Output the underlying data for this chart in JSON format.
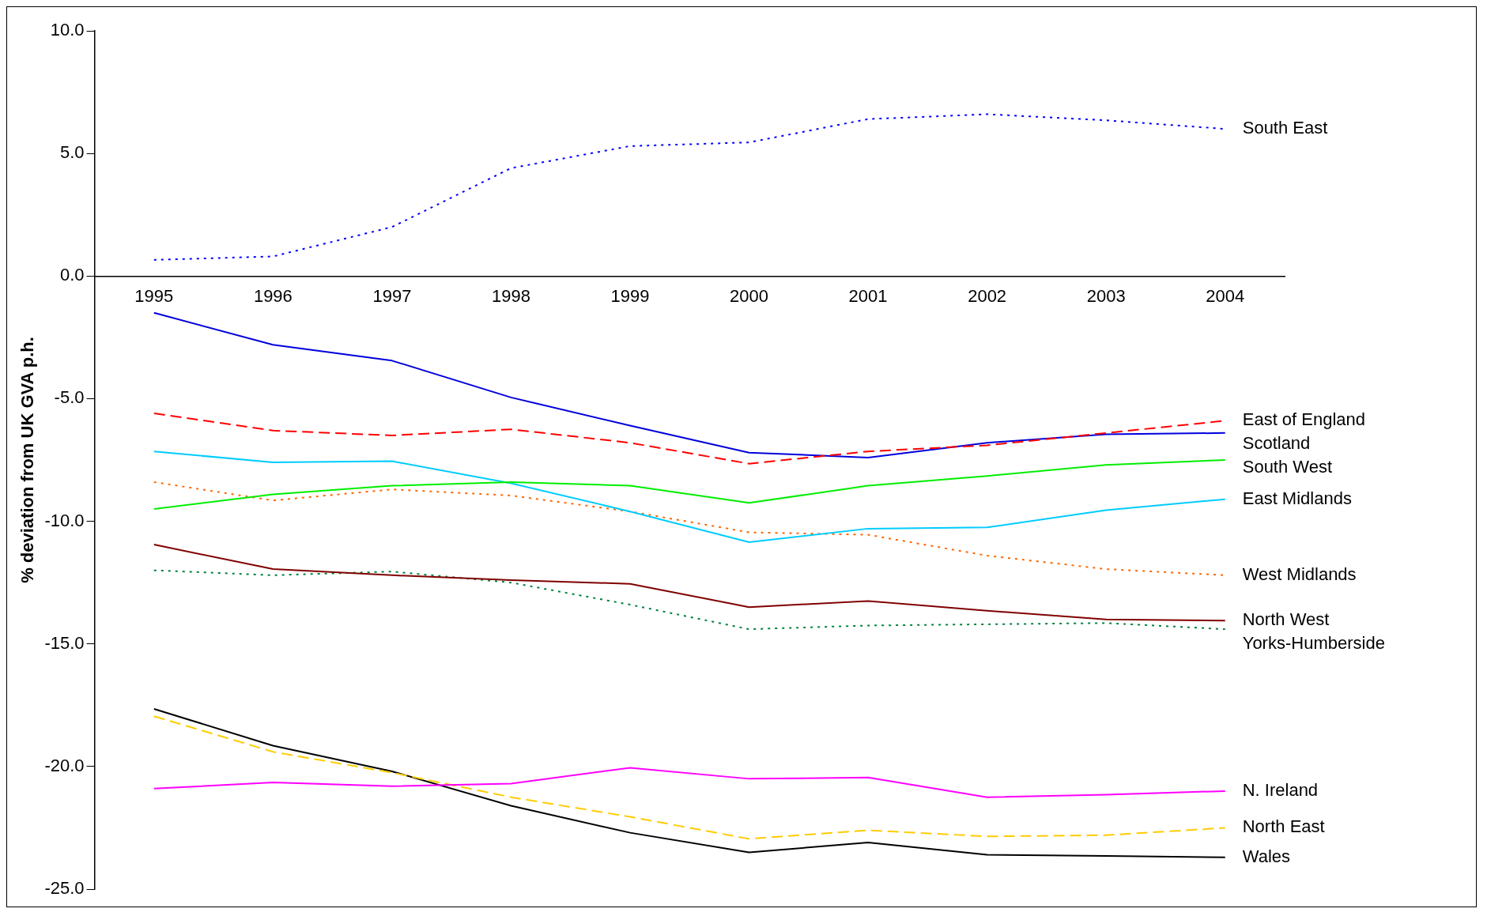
{
  "chart_data": {
    "type": "line",
    "ylabel": "% deviation from UK GVA p.h.",
    "categories": [
      "1995",
      "1996",
      "1997",
      "1998",
      "1999",
      "2000",
      "2001",
      "2002",
      "2003",
      "2004"
    ],
    "ylim": [
      -25,
      10
    ],
    "yticks": [
      {
        "value": -25,
        "label": "-25.0"
      },
      {
        "value": -20,
        "label": "-20.0"
      },
      {
        "value": -15,
        "label": "-15.0"
      },
      {
        "value": -10,
        "label": "-10.0"
      },
      {
        "value": -5,
        "label": "-5.0"
      },
      {
        "value": 0,
        "label": "0.0"
      },
      {
        "value": 5,
        "label": "5.0"
      },
      {
        "value": 10,
        "label": "10.0"
      }
    ],
    "grid": false,
    "legend": false,
    "marker": "none",
    "series": [
      {
        "name": "South East",
        "color": "#0000ff",
        "line_style": "dotted",
        "values": [
          0.66,
          0.8,
          2.0,
          4.4,
          5.3,
          5.45,
          6.4,
          6.6,
          6.35,
          6.0
        ]
      },
      {
        "name": "East of England",
        "color": "#ff0000",
        "line_style": "dashed",
        "values": [
          -5.6,
          -6.3,
          -6.5,
          -6.25,
          -6.8,
          -7.65,
          -7.15,
          -6.9,
          -6.4,
          -5.9
        ]
      },
      {
        "name": "Scotland",
        "color": "#0000dd",
        "line_style": "solid",
        "values": [
          -1.5,
          -2.8,
          -3.45,
          -4.95,
          -6.1,
          -7.2,
          -7.4,
          -6.8,
          -6.45,
          -6.4
        ]
      },
      {
        "name": "South West",
        "color": "#00ee00",
        "line_style": "solid",
        "values": [
          -9.5,
          -8.9,
          -8.55,
          -8.4,
          -8.55,
          -9.25,
          -8.55,
          -8.15,
          -7.7,
          -7.5
        ]
      },
      {
        "name": "East Midlands",
        "color": "#00ccff",
        "line_style": "solid",
        "values": [
          -7.15,
          -7.6,
          -7.55,
          -8.45,
          -9.6,
          -10.85,
          -10.3,
          -10.25,
          -9.55,
          -9.1
        ]
      },
      {
        "name": "West Midlands",
        "color": "#ff6600",
        "line_style": "dotted",
        "values": [
          -8.4,
          -9.15,
          -8.7,
          -8.95,
          -9.6,
          -10.45,
          -10.55,
          -11.4,
          -11.95,
          -12.2
        ]
      },
      {
        "name": "North West",
        "color": "#800000",
        "line_style": "solid",
        "values": [
          -10.95,
          -11.95,
          -12.2,
          -12.4,
          -12.55,
          -13.5,
          -13.25,
          -13.65,
          -14.0,
          -14.05
        ]
      },
      {
        "name": "Yorks-Humberside",
        "color": "#008040",
        "line_style": "dotted",
        "values": [
          -12.0,
          -12.2,
          -12.05,
          -12.5,
          -13.4,
          -14.4,
          -14.25,
          -14.2,
          -14.15,
          -14.4
        ]
      },
      {
        "name": "N. Ireland",
        "color": "#ff00ff",
        "line_style": "solid",
        "values": [
          -20.9,
          -20.65,
          -20.8,
          -20.7,
          -20.05,
          -20.5,
          -20.45,
          -21.25,
          -21.15,
          -21.0
        ]
      },
      {
        "name": "North East",
        "color": "#ffcc00",
        "line_style": "dashed",
        "values": [
          -17.95,
          -19.4,
          -20.25,
          -21.25,
          -22.05,
          -22.95,
          -22.6,
          -22.85,
          -22.8,
          -22.5
        ]
      },
      {
        "name": "Wales",
        "color": "#000000",
        "line_style": "solid",
        "values": [
          -17.65,
          -19.15,
          -20.2,
          -21.6,
          -22.7,
          -23.5,
          -23.1,
          -23.6,
          -23.65,
          -23.7
        ]
      }
    ]
  }
}
